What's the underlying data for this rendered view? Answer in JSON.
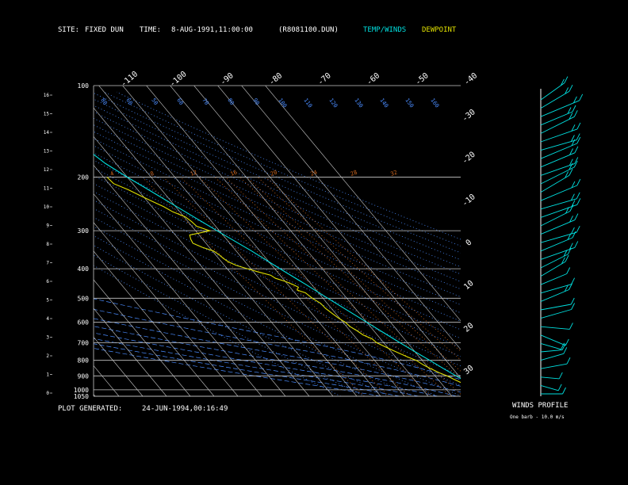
{
  "header": {
    "site_label": "SITE:",
    "site_value": "FIXED DUN",
    "time_label": "TIME:",
    "time_value": "8-AUG-1991,11:00:00",
    "file": "(R8081100.DUN)",
    "legend_temp": "TEMP/WINDS",
    "legend_dew": "DEWPOINT"
  },
  "footer": {
    "generated_label": "PLOT GENERATED:",
    "generated_value": "24-JUN-1994,00:16:49",
    "winds_title": "WINDS PROFILE",
    "barb_note": "One barb - 10.0 m/s"
  },
  "colors": {
    "temp": "#00e0e0",
    "dewpoint": "#e0e000",
    "isobar": "#c8c8c8",
    "isotherm": "#c8c8c8",
    "dry_adiabat": "#4a8cff",
    "moist_adiabat": "#4a8cff",
    "mixing_ratio": "#d2691e",
    "text": "#ffffff"
  },
  "chart_data": {
    "type": "line",
    "ylim": [
      1050,
      100
    ],
    "yscale": "log",
    "xlim": [
      -40,
      40
    ],
    "pressure_labels": [
      "100",
      "200",
      "300",
      "400",
      "500",
      "600",
      "700",
      "800",
      "900",
      "1000",
      "1050"
    ],
    "pressure_values": [
      100,
      200,
      300,
      400,
      500,
      600,
      700,
      800,
      900,
      1000,
      1050
    ],
    "height_labels": [
      "0",
      "1",
      "2",
      "3",
      "4",
      "5",
      "6",
      "7",
      "8",
      "9",
      "10",
      "11",
      "12",
      "13",
      "14",
      "15",
      "16"
    ],
    "isotherm_top_labels": [
      "-110",
      "-100",
      "-90",
      "-80",
      "-70",
      "-60",
      "-50",
      "-40"
    ],
    "isotherm_right_labels": [
      "-30",
      "-20",
      "-10",
      "0",
      "10",
      "20",
      "30"
    ],
    "dry_adiabat_labels": [
      "80",
      "60",
      "50",
      "60",
      "70",
      "80",
      "90",
      "100",
      "110",
      "120",
      "130",
      "140",
      "150",
      "160",
      "70",
      "10",
      "20",
      "10",
      "25"
    ],
    "mixing_ratio_labels": [
      "4",
      "8",
      "12",
      "16",
      "20",
      "24",
      "28",
      "32"
    ],
    "series": [
      {
        "name": "TEMP/WINDS",
        "pressure": [
          1040,
          1000,
          950,
          900,
          850,
          800,
          750,
          700,
          650,
          600,
          550,
          500,
          450,
          400,
          350,
          300,
          250,
          220,
          200,
          180,
          160,
          150,
          140,
          130,
          120,
          110,
          100
        ],
        "temperature": [
          25.5,
          24,
          21.5,
          18.8,
          16,
          13.2,
          10,
          6.8,
          3.5,
          0,
          -3.8,
          -8,
          -12.5,
          -17.8,
          -23.5,
          -31,
          -39.5,
          -45.5,
          -50,
          -54.5,
          -57.5,
          -59.5,
          -62,
          -64,
          -66,
          -68,
          -70
        ]
      },
      {
        "name": "DEWPOINT",
        "pressure": [
          1040,
          1000,
          960,
          920,
          900,
          880,
          850,
          830,
          800,
          780,
          760,
          740,
          720,
          700,
          680,
          660,
          640,
          620,
          600,
          580,
          560,
          540,
          520,
          500,
          480,
          470,
          460,
          450,
          440,
          430,
          420,
          410,
          400,
          390,
          380,
          370,
          360,
          350,
          340,
          330,
          320,
          310,
          300,
          290,
          280,
          270,
          260,
          250,
          240,
          230,
          220,
          210,
          200
        ],
        "temperature": [
          23.5,
          22.8,
          19.5,
          16.5,
          15,
          13,
          10.5,
          9,
          7.5,
          5,
          3,
          1,
          -1,
          -3,
          -3.5,
          -6,
          -7,
          -8.5,
          -9,
          -10.5,
          -11.5,
          -12.5,
          -12.8,
          -14.5,
          -15.5,
          -18,
          -16.5,
          -18,
          -20,
          -23,
          -24,
          -28,
          -31.5,
          -35,
          -37,
          -38,
          -38.5,
          -39.5,
          -43,
          -45.5,
          -45,
          -44,
          -34,
          -38,
          -38.5,
          -39.5,
          -43,
          -45,
          -48,
          -51,
          -54,
          -58,
          -58.5
        ]
      }
    ]
  },
  "winds": {
    "speeds_ms": [
      5,
      4,
      3,
      9,
      8,
      5,
      6,
      12,
      10,
      14,
      12,
      15,
      14,
      13,
      16,
      16,
      18,
      18,
      18,
      20,
      18,
      20,
      18,
      22,
      20,
      22,
      18,
      20,
      22,
      18,
      20,
      22,
      18,
      24,
      20,
      18
    ],
    "directions_deg": [
      270,
      300,
      280,
      250,
      240,
      260,
      300,
      310,
      280,
      240,
      250,
      230,
      240,
      230,
      220,
      225,
      235,
      230,
      240,
      230,
      225,
      235,
      240,
      230,
      220,
      225,
      235,
      230,
      230,
      240,
      235,
      225,
      230,
      230,
      220,
      215
    ]
  }
}
